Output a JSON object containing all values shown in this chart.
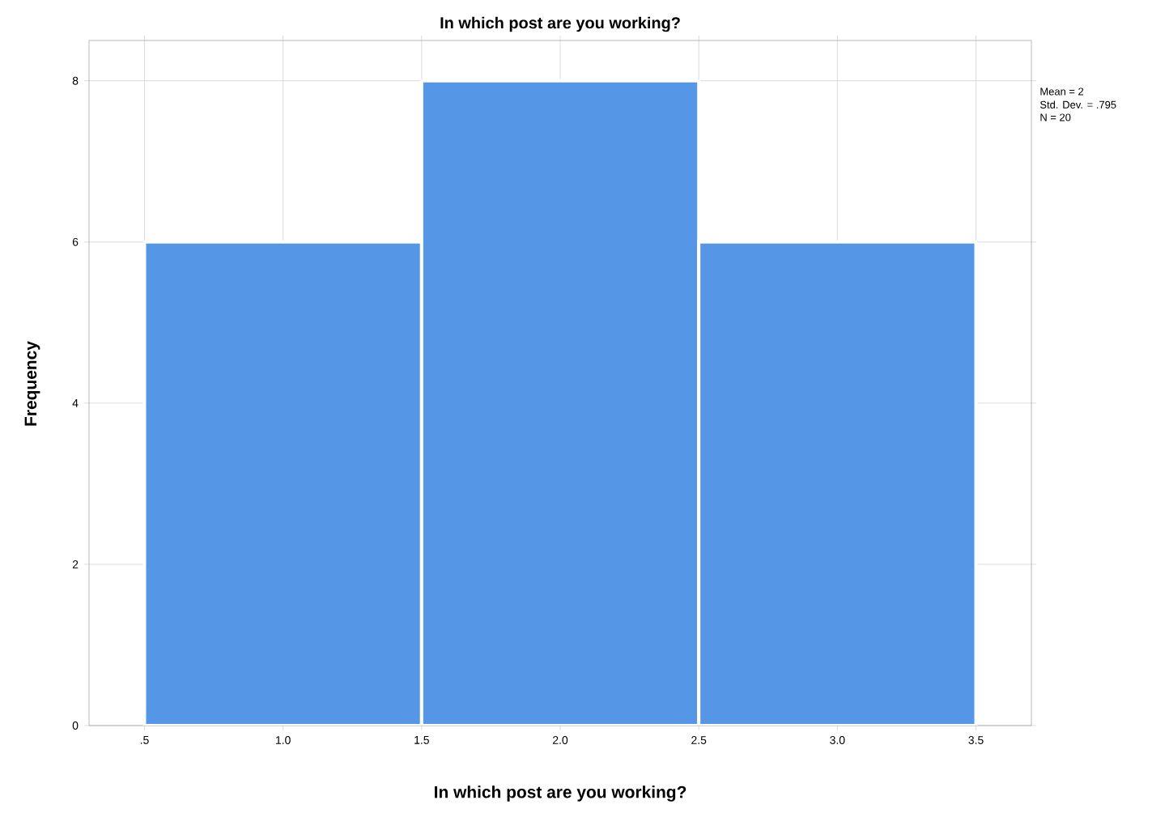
{
  "chart_data": {
    "type": "histogram",
    "title": "In which post are you working?",
    "xlabel": "In which post are you working?",
    "ylabel": "Frequency",
    "bins": [
      0.5,
      1.5,
      2.5,
      3.5
    ],
    "values": [
      6,
      8,
      6
    ],
    "color": "#5596e6",
    "xlim": [
      0.3,
      3.7
    ],
    "ylim": [
      0,
      8.5
    ],
    "xticks": [
      {
        "value": 0.5,
        "label": ".5"
      },
      {
        "value": 1.0,
        "label": "1.0"
      },
      {
        "value": 1.5,
        "label": "1.5"
      },
      {
        "value": 2.0,
        "label": "2.0"
      },
      {
        "value": 2.5,
        "label": "2.5"
      },
      {
        "value": 3.0,
        "label": "3.0"
      },
      {
        "value": 3.5,
        "label": "3.5"
      }
    ],
    "yticks": [
      0,
      2,
      4,
      6,
      8
    ],
    "grid": true,
    "annotations": [
      "Mean = 2",
      "Std. Dev. = .795",
      "N = 20"
    ]
  }
}
